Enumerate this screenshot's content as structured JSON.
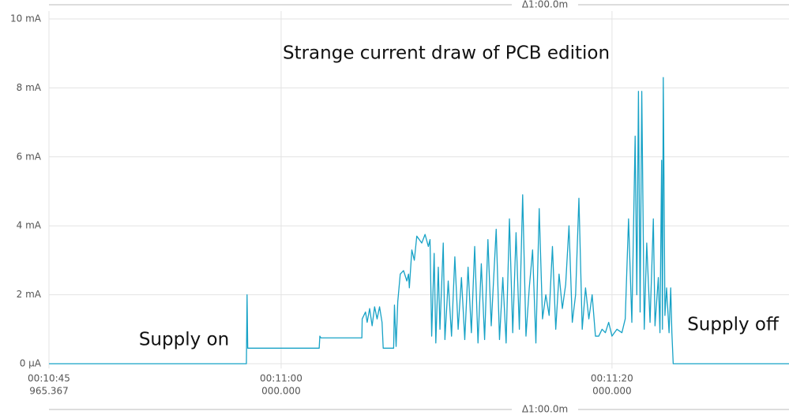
{
  "chart_data": {
    "type": "line",
    "title": "Strange current draw of PCB edition",
    "annotations": [
      "Supply on",
      "Supply off"
    ],
    "range_label": "Δ1:00.0m",
    "color": "#17a2c6",
    "grid": true,
    "xlim": [
      45.965367,
      90.7
    ],
    "xticks": [
      {
        "value": 45.965367,
        "label": [
          "00:10:45",
          "965.367"
        ]
      },
      {
        "value": 60,
        "label": [
          "00:11:00",
          "000.000"
        ]
      },
      {
        "value": 80,
        "label": [
          "00:11:20",
          "000.000"
        ]
      }
    ],
    "ylim": [
      0,
      10
    ],
    "yticks": [
      {
        "value": 0,
        "label": "0 µA"
      },
      {
        "value": 2,
        "label": "2 mA"
      },
      {
        "value": 4,
        "label": "4 mA"
      },
      {
        "value": 6,
        "label": "6 mA"
      },
      {
        "value": 8,
        "label": "8 mA"
      },
      {
        "value": 10,
        "label": "10 mA"
      }
    ],
    "x": [
      45.97,
      57.9,
      57.94,
      57.98,
      62.3,
      62.34,
      62.4,
      64.88,
      64.9,
      65.1,
      65.2,
      65.35,
      65.5,
      65.65,
      65.8,
      65.95,
      66.1,
      66.17,
      66.8,
      66.85,
      66.95,
      67.05,
      67.2,
      67.4,
      67.6,
      67.7,
      67.75,
      67.9,
      68.05,
      68.2,
      68.5,
      68.7,
      68.9,
      69.0,
      69.1,
      69.25,
      69.35,
      69.5,
      69.6,
      69.8,
      69.9,
      70.1,
      70.3,
      70.5,
      70.7,
      70.9,
      71.1,
      71.3,
      71.5,
      71.7,
      71.9,
      72.1,
      72.3,
      72.5,
      72.7,
      73.0,
      73.2,
      73.4,
      73.6,
      73.8,
      74.0,
      74.2,
      74.4,
      74.6,
      74.8,
      75.0,
      75.2,
      75.4,
      75.6,
      75.8,
      76.0,
      76.2,
      76.4,
      76.6,
      76.8,
      77.0,
      77.2,
      77.4,
      77.6,
      77.8,
      78.0,
      78.2,
      78.4,
      78.6,
      78.8,
      79.0,
      79.2,
      79.4,
      79.6,
      79.8,
      80.0,
      80.3,
      80.6,
      80.8,
      81.0,
      81.2,
      81.4,
      81.5,
      81.6,
      81.7,
      81.8,
      81.95,
      82.1,
      82.3,
      82.5,
      82.6,
      82.8,
      82.9,
      83.0,
      83.05,
      83.1,
      83.2,
      83.3,
      83.45,
      83.55,
      83.62,
      83.7,
      90.7
    ],
    "values": [
      0,
      0,
      2.0,
      0.45,
      0.45,
      0.8,
      0.75,
      0.75,
      1.3,
      1.5,
      1.2,
      1.6,
      1.1,
      1.65,
      1.3,
      1.65,
      1.2,
      0.45,
      0.45,
      1.7,
      0.5,
      1.8,
      2.6,
      2.7,
      2.4,
      2.6,
      2.2,
      3.3,
      3.0,
      3.7,
      3.5,
      3.75,
      3.4,
      3.6,
      0.8,
      3.2,
      0.6,
      2.8,
      1.0,
      3.5,
      0.7,
      2.4,
      0.8,
      3.1,
      1.0,
      2.5,
      0.7,
      2.8,
      0.9,
      3.4,
      0.6,
      2.9,
      0.7,
      3.6,
      1.1,
      3.9,
      0.7,
      2.5,
      0.6,
      4.2,
      0.9,
      3.8,
      1.0,
      4.9,
      0.8,
      2.2,
      3.3,
      0.6,
      4.5,
      1.3,
      2.0,
      1.4,
      3.4,
      1.0,
      2.6,
      1.6,
      2.3,
      4.0,
      1.2,
      2.0,
      4.8,
      1.0,
      2.2,
      1.3,
      2.0,
      0.8,
      0.8,
      1.0,
      0.9,
      1.2,
      0.8,
      1.0,
      0.9,
      1.3,
      4.2,
      1.2,
      6.6,
      2.0,
      7.9,
      1.5,
      7.9,
      1.0,
      3.5,
      1.2,
      4.2,
      1.1,
      2.5,
      0.9,
      5.9,
      1.0,
      8.3,
      1.4,
      2.2,
      0.9,
      2.2,
      0.9,
      0,
      0
    ]
  }
}
